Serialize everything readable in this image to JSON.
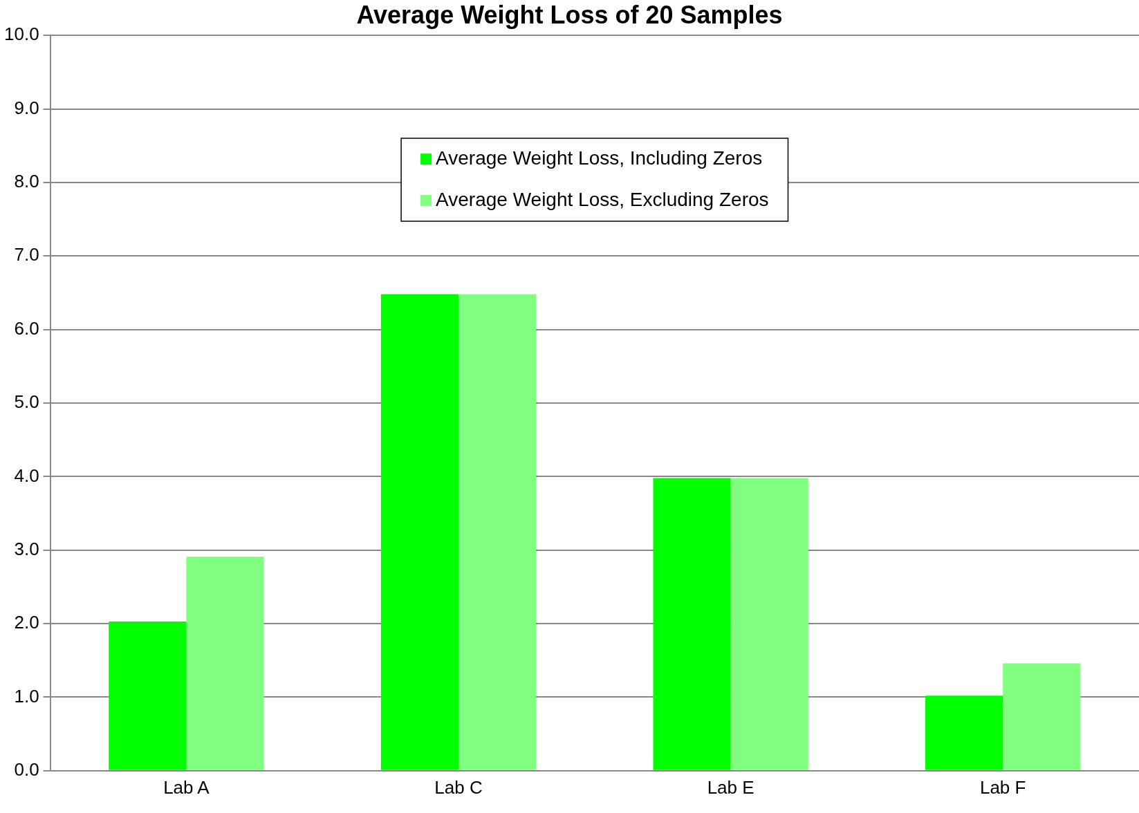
{
  "chart_data": {
    "type": "bar",
    "title": "Average Weight Loss of 20 Samples",
    "categories": [
      "Lab A",
      "Lab C",
      "Lab E",
      "Lab F"
    ],
    "series": [
      {
        "name": "Average Weight Loss, Including Zeros",
        "color": "#00ff00",
        "values": [
          2.03,
          6.48,
          3.98,
          1.02
        ]
      },
      {
        "name": "Average Weight Loss, Excluding Zeros",
        "color": "#80ff80",
        "values": [
          2.91,
          6.48,
          3.98,
          1.46
        ]
      }
    ],
    "ylim": [
      0,
      10
    ],
    "yticks": [
      {
        "value": 0,
        "label": "0.0"
      },
      {
        "value": 1,
        "label": "1.0"
      },
      {
        "value": 2,
        "label": "2.0"
      },
      {
        "value": 3,
        "label": "3.0"
      },
      {
        "value": 4,
        "label": "4.0"
      },
      {
        "value": 5,
        "label": "5.0"
      },
      {
        "value": 6,
        "label": "6.0"
      },
      {
        "value": 7,
        "label": "7.0"
      },
      {
        "value": 8,
        "label": "8.0"
      },
      {
        "value": 9,
        "label": "9.0"
      },
      {
        "value": 10,
        "label": "10.0"
      }
    ],
    "grid": "y",
    "legend": "top"
  }
}
